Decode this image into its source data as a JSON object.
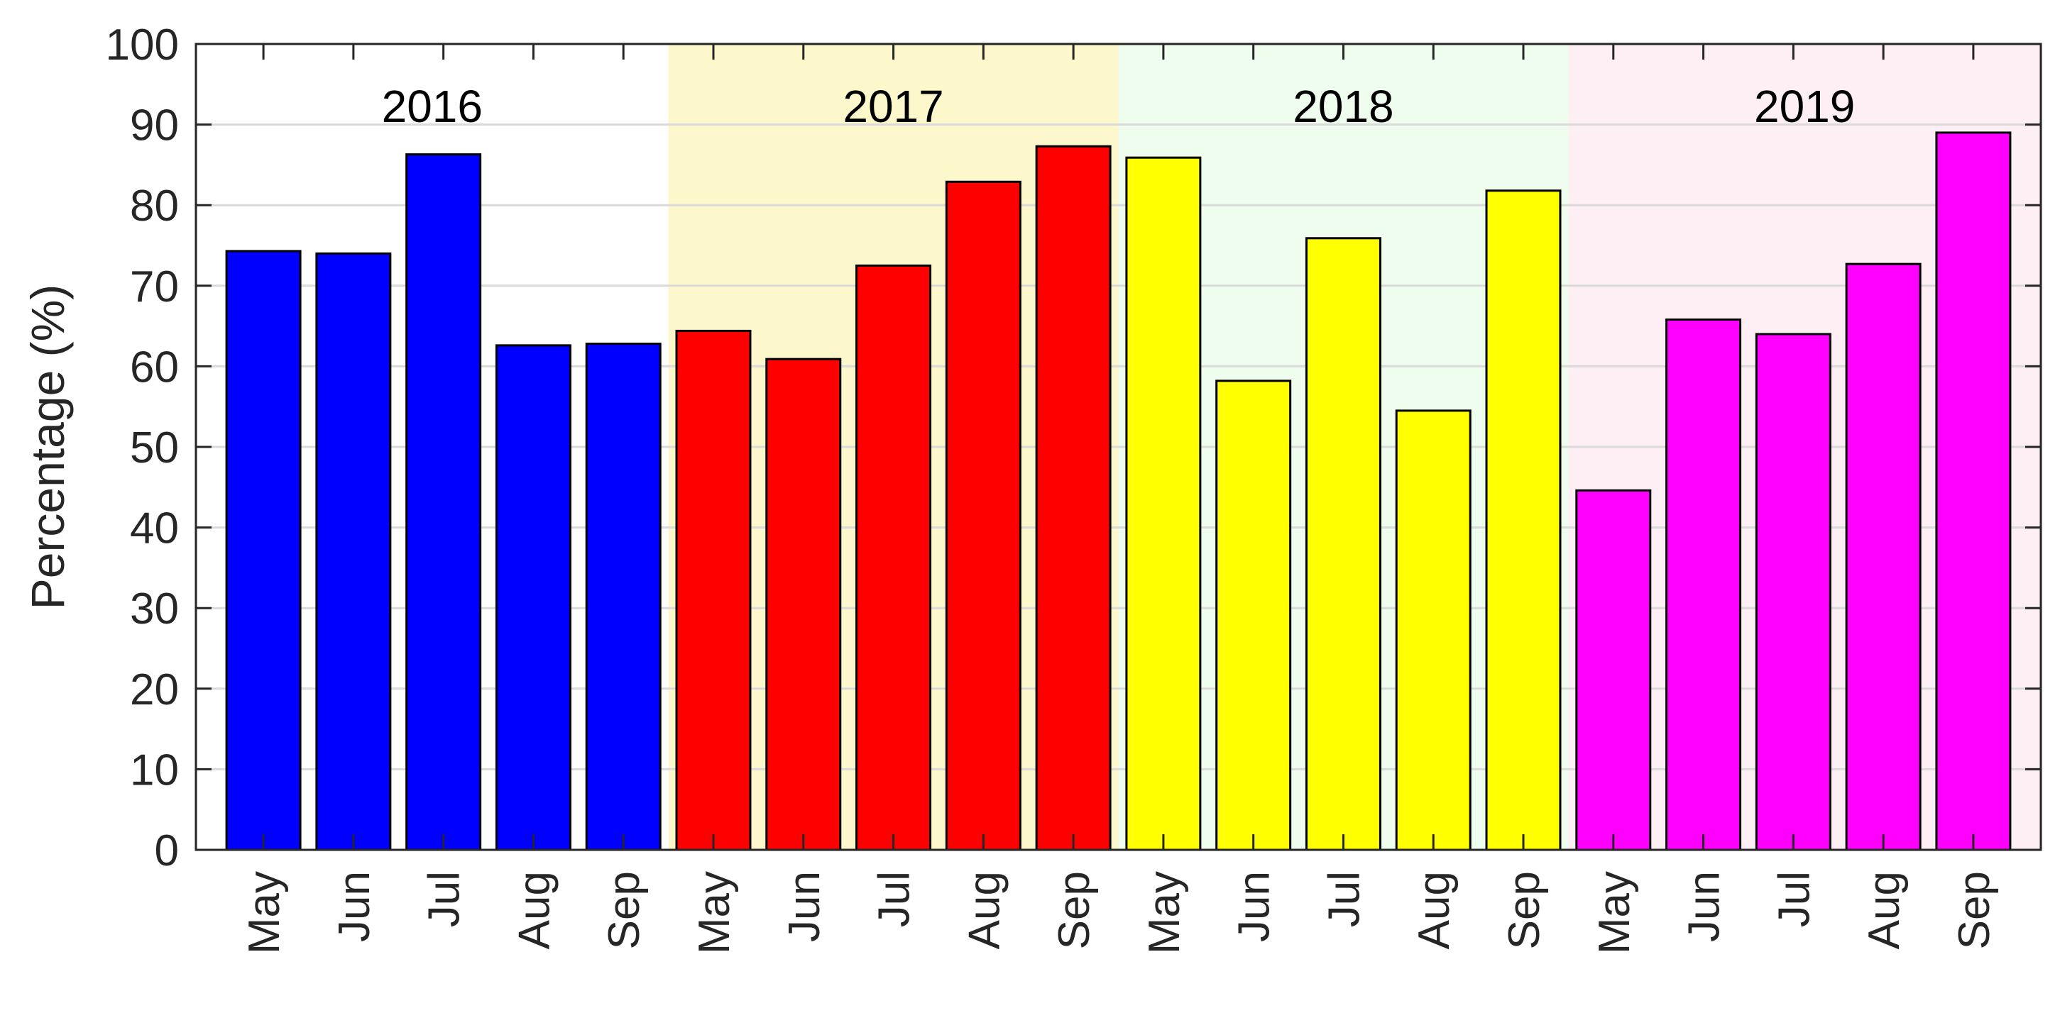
{
  "chart_data": {
    "type": "bar",
    "title": "",
    "xlabel": "",
    "ylabel": "Percentage (%)",
    "ylim": [
      0,
      100
    ],
    "yticks": [
      0,
      10,
      20,
      30,
      40,
      50,
      60,
      70,
      80,
      90,
      100
    ],
    "grid": "horizontal",
    "legend": "none",
    "groups": [
      {
        "label": "2016",
        "background": "#ffffff",
        "bar_color": "#0000ff",
        "categories": [
          "May",
          "Jun",
          "Jul",
          "Aug",
          "Sep"
        ],
        "values": [
          74.3,
          74.0,
          86.3,
          62.6,
          62.8
        ]
      },
      {
        "label": "2017",
        "background": "#fdf8cc",
        "bar_color": "#ff0000",
        "categories": [
          "May",
          "Jun",
          "Jul",
          "Aug",
          "Sep"
        ],
        "values": [
          64.4,
          60.9,
          72.5,
          82.9,
          87.3
        ]
      },
      {
        "label": "2018",
        "background": "#effdee",
        "bar_color": "#ffff00",
        "categories": [
          "May",
          "Jun",
          "Jul",
          "Aug",
          "Sep"
        ],
        "values": [
          85.9,
          58.2,
          75.9,
          54.5,
          81.8
        ]
      },
      {
        "label": "2019",
        "background": "#fdeff3",
        "bar_color": "#ff00ff",
        "categories": [
          "May",
          "Jun",
          "Jul",
          "Aug",
          "Sep"
        ],
        "values": [
          44.6,
          65.8,
          64.0,
          72.7,
          89.0
        ]
      }
    ]
  }
}
